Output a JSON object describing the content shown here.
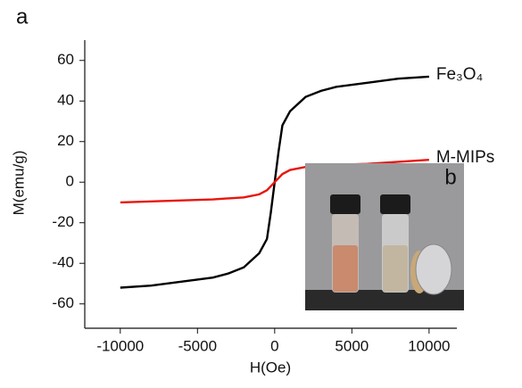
{
  "chart_data": {
    "type": "line",
    "panel_label": "a",
    "inset_label": "b",
    "xlabel": "H(Oe)",
    "ylabel": "M(emu/g)",
    "x": [
      -10000,
      -8000,
      -6000,
      -4000,
      -3000,
      -2000,
      -1000,
      -500,
      -250,
      0,
      250,
      500,
      1000,
      2000,
      3000,
      4000,
      6000,
      8000,
      10000
    ],
    "series": [
      {
        "name": "Fe₃O₄",
        "color": "#000000",
        "values": [
          -52,
          -51,
          -49,
          -47,
          -45,
          -42,
          -35,
          -28,
          -15,
          0,
          15,
          28,
          35,
          42,
          45,
          47,
          49,
          51,
          52
        ]
      },
      {
        "name": "M-MIPs",
        "color": "#e8150e",
        "values": [
          -10,
          -9.5,
          -9,
          -8.5,
          -8,
          -7.5,
          -6,
          -4,
          -2,
          0,
          2,
          4,
          6,
          7.5,
          8,
          8.5,
          9,
          10,
          11
        ]
      }
    ],
    "xlim": [
      -12300,
      11800
    ],
    "ylim": [
      -72,
      70
    ],
    "xticks": [
      -10000,
      -5000,
      0,
      5000,
      10000
    ],
    "yticks": [
      -60,
      -40,
      -20,
      0,
      20,
      40,
      60
    ]
  }
}
